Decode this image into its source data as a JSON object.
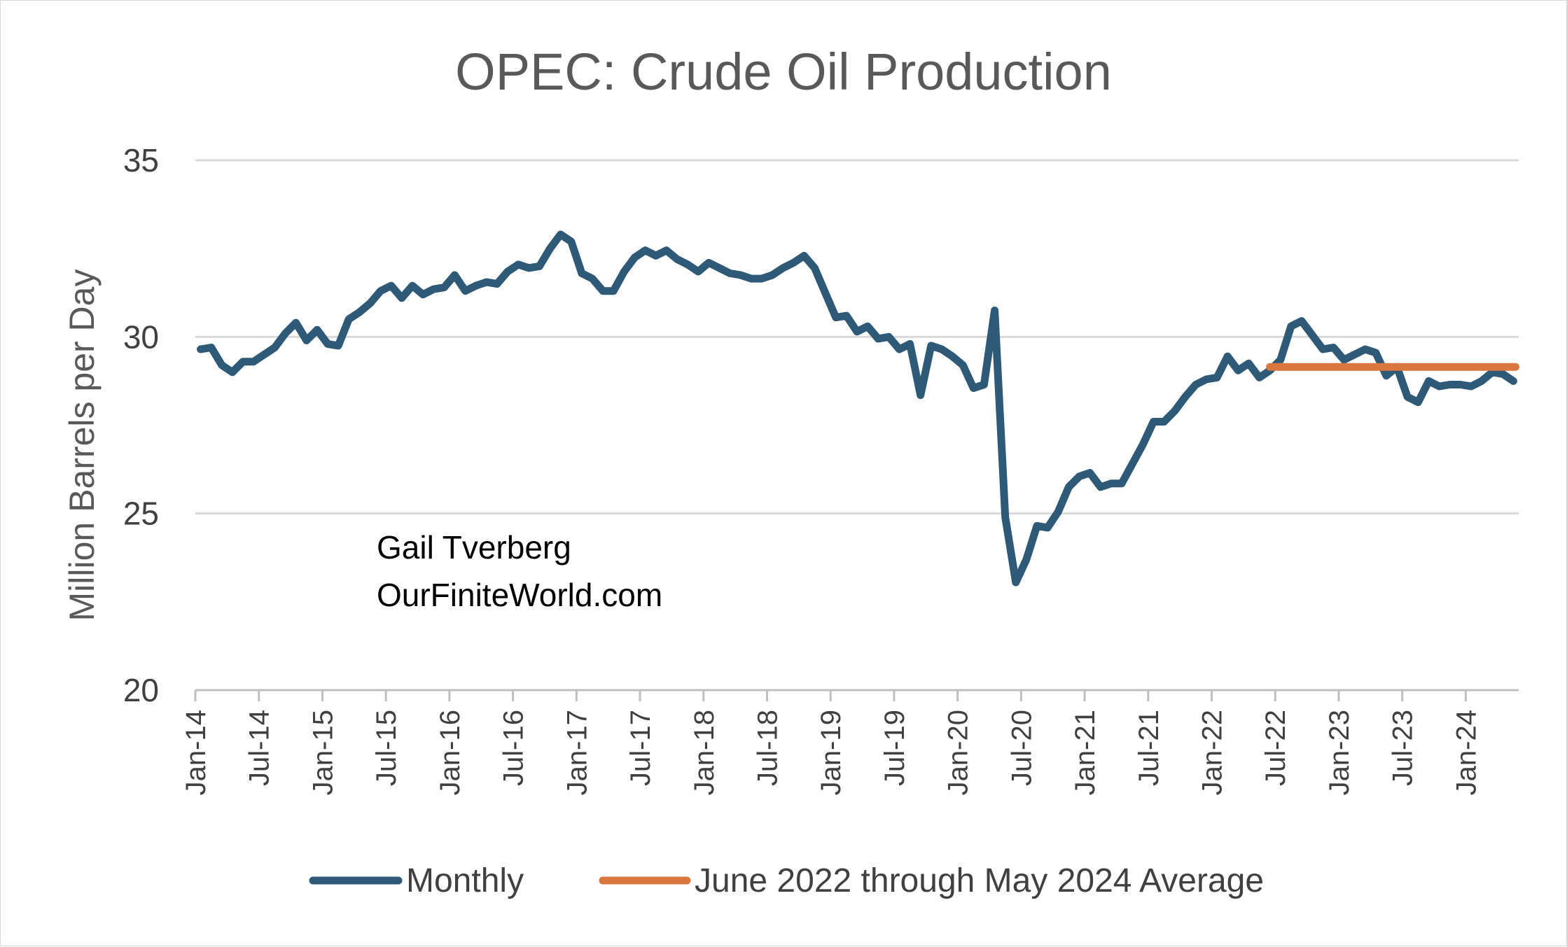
{
  "chart_data": {
    "type": "line",
    "title": "OPEC: Crude Oil Production",
    "ylabel": "Million Barrels  per Day",
    "xlabel": "",
    "ylim": [
      20,
      35
    ],
    "yticks": [
      20,
      25,
      30,
      35
    ],
    "grid": true,
    "legend_position": "bottom",
    "x_tick_labels": [
      "Jan-14",
      "Jul-14",
      "Jan-15",
      "Jul-15",
      "Jan-16",
      "Jul-16",
      "Jan-17",
      "Jul-17",
      "Jan-18",
      "Jul-18",
      "Jan-19",
      "Jul-19",
      "Jan-20",
      "Jul-20",
      "Jan-21",
      "Jul-21",
      "Jan-22",
      "Jul-22",
      "Jan-23",
      "Jul-23",
      "Jan-24"
    ],
    "x_start": "Jan-14",
    "x_end": "Jun-24",
    "series": [
      {
        "name": "Monthly",
        "color": "#2e5a78",
        "values": [
          29.65,
          29.7,
          29.2,
          29.0,
          29.3,
          29.3,
          29.5,
          29.7,
          30.1,
          30.4,
          29.9,
          30.2,
          29.8,
          29.75,
          30.5,
          30.7,
          30.95,
          31.3,
          31.45,
          31.1,
          31.45,
          31.2,
          31.35,
          31.4,
          31.75,
          31.3,
          31.45,
          31.55,
          31.5,
          31.85,
          32.05,
          31.95,
          32.0,
          32.5,
          32.9,
          32.7,
          31.8,
          31.65,
          31.3,
          31.3,
          31.85,
          32.25,
          32.45,
          32.3,
          32.45,
          32.2,
          32.05,
          31.85,
          32.1,
          31.95,
          31.8,
          31.75,
          31.65,
          31.65,
          31.75,
          31.95,
          32.1,
          32.3,
          31.95,
          31.25,
          30.55,
          30.6,
          30.15,
          30.3,
          29.95,
          30.0,
          29.65,
          29.8,
          28.35,
          29.75,
          29.65,
          29.45,
          29.2,
          28.55,
          28.65,
          30.75,
          24.9,
          23.05,
          23.7,
          24.65,
          24.6,
          25.05,
          25.75,
          26.05,
          26.15,
          25.75,
          25.85,
          25.85,
          26.4,
          26.95,
          27.6,
          27.6,
          27.9,
          28.3,
          28.65,
          28.8,
          28.85,
          29.45,
          29.05,
          29.25,
          28.85,
          29.05,
          29.35,
          30.3,
          30.45,
          30.05,
          29.65,
          29.7,
          29.35,
          29.5,
          29.65,
          29.55,
          28.9,
          29.15,
          28.3,
          28.15,
          28.75,
          28.6,
          28.65,
          28.65,
          28.6,
          28.75,
          29.0,
          28.95,
          28.75
        ]
      },
      {
        "name": "June 2022 through May 2024 Average",
        "color": "#d9773f",
        "value": 29.15,
        "x_from": "Jun-22",
        "x_to": "Jun-24"
      }
    ],
    "annotations": [
      "Gail Tverberg",
      "OurFiniteWorld.com"
    ]
  },
  "colors": {
    "grid": "#d9d9d9",
    "axis": "#bfbfbf"
  }
}
